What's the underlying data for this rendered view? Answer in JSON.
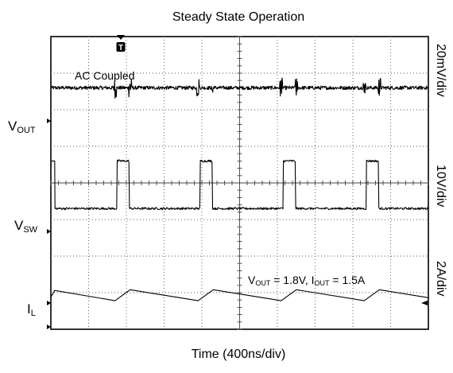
{
  "chart_data": {
    "type": "line",
    "title": "Steady State Operation",
    "xlabel": "Time (400ns/div)",
    "divisions": {
      "x": 10,
      "y": 8
    },
    "annotation": "AC Coupled",
    "conditions": {
      "vout_label": "V",
      "vout_sub": "OUT",
      "vout_value": " = 1.8V, ",
      "iout_label": "I",
      "iout_sub": "OUT",
      "iout_value": " = 1.5A"
    },
    "trigger_label": "T",
    "switching": {
      "period_divs": 2.2,
      "on_time_divs": 0.4,
      "first_rise_divs": 1.7
    },
    "series": [
      {
        "name": "V",
        "sub": "OUT",
        "scale": "20mV/div",
        "level_divs": 6.6,
        "ripple_divs": 0.1
      },
      {
        "name": "V",
        "sub": "SW",
        "scale": "10V/div",
        "low_divs": 3.3,
        "high_divs": 4.6
      },
      {
        "name": "I",
        "sub": "L",
        "scale": "2A/div",
        "mean_divs": 0.93,
        "ripple_pp_divs": 0.3
      }
    ]
  }
}
